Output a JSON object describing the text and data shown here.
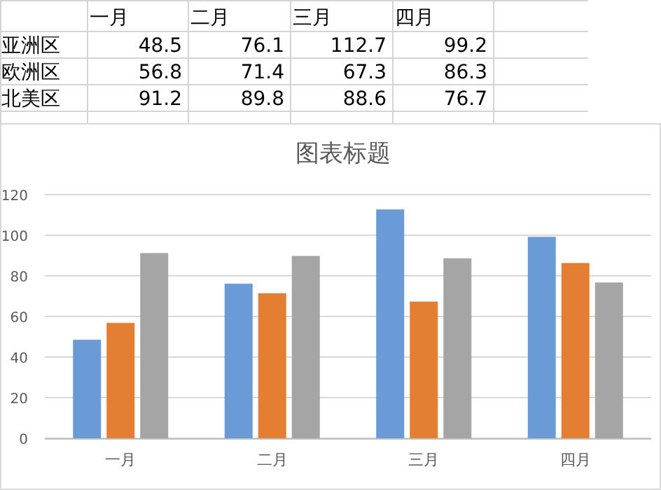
{
  "chart_data": [
    {
      "type": "other",
      "annotations": [
        "一月",
        "二月",
        "三月",
        "四月",
        "亚洲区",
        "48.5",
        "76.1",
        "112.7",
        "99.2",
        "欧洲区",
        "56.8",
        "71.4",
        "67.3",
        "86.3",
        "北美区",
        "91.2",
        "89.8",
        "88.6",
        "76.7"
      ]
    },
    {
      "type": "bar",
      "title": "图表标题",
      "categories": [
        "一月",
        "二月",
        "三月",
        "四月"
      ],
      "series": [
        {
          "color": "#6a9bd6",
          "values": [
            48.5,
            76.1,
            112.7,
            99.2
          ]
        },
        {
          "color": "#e47e33",
          "values": [
            56.8,
            71.4,
            67.3,
            86.3
          ]
        },
        {
          "color": "#a5a5a5",
          "values": [
            91.2,
            89.8,
            88.6,
            76.7
          ]
        }
      ],
      "ylim": [
        0,
        120
      ],
      "yticks": [
        0,
        20,
        40,
        60,
        80,
        100,
        120
      ],
      "grid": "y"
    }
  ]
}
